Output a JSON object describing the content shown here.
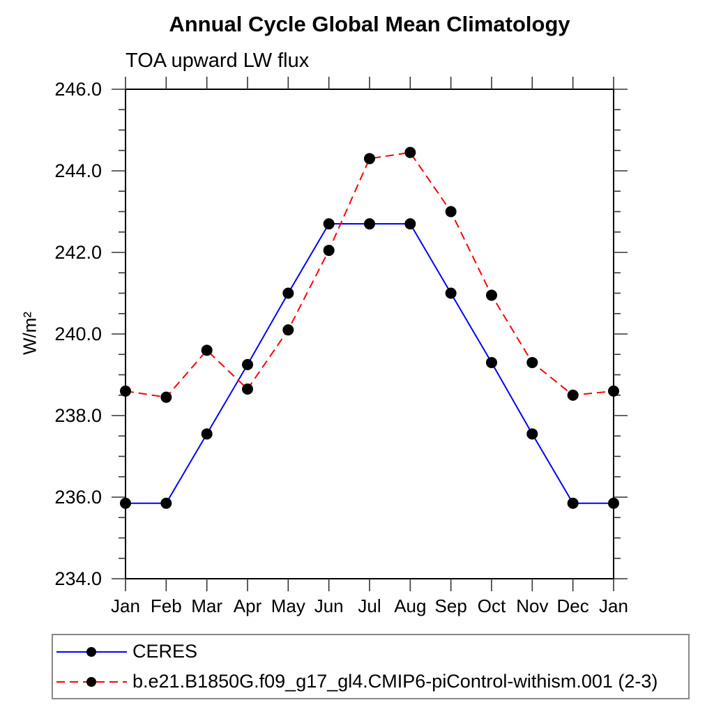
{
  "chart_data": {
    "type": "line",
    "title": "Annual Cycle Global Mean Climatology",
    "subtitle": "TOA upward LW flux",
    "ylabel": "W/m²",
    "xlabel": "",
    "categories": [
      "Jan",
      "Feb",
      "Mar",
      "Apr",
      "May",
      "Jun",
      "Jul",
      "Aug",
      "Sep",
      "Oct",
      "Nov",
      "Dec",
      "Jan"
    ],
    "ylim": [
      234.0,
      246.0
    ],
    "ytick_major_interval": 2.0,
    "ytick_minor_interval": 0.5,
    "ytick_labels": [
      "234.0",
      "236.0",
      "238.0",
      "240.0",
      "242.0",
      "244.0",
      "246.0"
    ],
    "grid": "off",
    "legend_position": "bottom-left",
    "marker_color": "#000000",
    "series": [
      {
        "name": "CERES",
        "color": "#0000ff",
        "style": "solid",
        "marker": "circle",
        "values": [
          235.85,
          235.85,
          237.55,
          239.25,
          241.0,
          242.7,
          242.7,
          242.7,
          241.0,
          239.3,
          237.55,
          235.85,
          235.85
        ]
      },
      {
        "name": "b.e21.B1850G.f09_g17_gl4.CMIP6-piControl-withism.001 (2-3)",
        "color": "#ff0000",
        "style": "dashed",
        "marker": "circle",
        "values": [
          238.6,
          238.45,
          239.6,
          238.65,
          240.1,
          242.05,
          244.3,
          244.45,
          243.0,
          240.95,
          239.3,
          238.5,
          238.6
        ]
      }
    ]
  }
}
